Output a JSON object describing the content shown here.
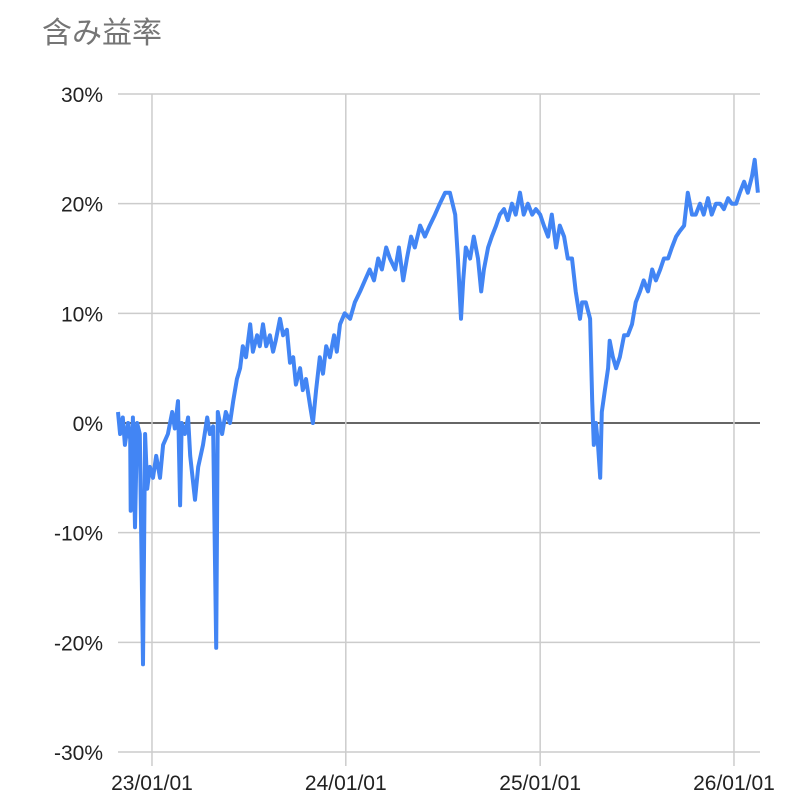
{
  "chart_data": {
    "type": "line",
    "title": "含み益率",
    "xlabel": "",
    "ylabel": "",
    "xlim": [
      "2022-10-29",
      "2026-02-19"
    ],
    "ylim": [
      -30,
      30
    ],
    "grid": true,
    "legend": "none",
    "line_color": "#4285F4",
    "y_ticks": [
      "30%",
      "20%",
      "10%",
      "0%",
      "-10%",
      "-20%",
      "-30%"
    ],
    "y_tick_values": [
      30,
      20,
      10,
      0,
      -10,
      -20,
      -30
    ],
    "x_ticks": [
      "23/01/01",
      "24/01/01",
      "25/01/01",
      "26/01/01"
    ],
    "x_tick_values": [
      "2023-01-01",
      "2024-01-01",
      "2025-01-01",
      "2026-01-01"
    ],
    "series": [
      {
        "x": [
          "2022-10-29",
          "2022-11-02",
          "2022-11-07",
          "2022-11-11",
          "2022-11-17",
          "2022-11-21",
          "2022-11-22",
          "2022-11-26",
          "2022-11-30",
          "2022-12-04",
          "2022-12-09",
          "2022-12-15",
          "2022-12-19",
          "2022-12-23",
          "2022-12-28",
          "2023-01-03",
          "2023-01-09",
          "2023-01-16",
          "2023-01-22",
          "2023-01-31",
          "2023-02-08",
          "2023-02-13",
          "2023-02-19",
          "2023-02-23",
          "2023-02-26",
          "2023-03-04",
          "2023-03-10",
          "2023-03-14",
          "2023-03-23",
          "2023-03-29",
          "2023-04-07",
          "2023-04-15",
          "2023-04-20",
          "2023-04-26",
          "2023-05-02",
          "2023-05-05",
          "2023-05-13",
          "2023-05-20",
          "2023-05-28",
          "2023-06-03",
          "2023-06-10",
          "2023-06-16",
          "2023-06-21",
          "2023-06-27",
          "2023-07-05",
          "2023-07-10",
          "2023-07-18",
          "2023-07-23",
          "2023-07-29",
          "2023-08-04",
          "2023-08-11",
          "2023-08-17",
          "2023-08-22",
          "2023-08-30",
          "2023-09-05",
          "2023-09-12",
          "2023-09-18",
          "2023-09-24",
          "2023-09-29",
          "2023-10-07",
          "2023-10-12",
          "2023-10-18",
          "2023-10-26",
          "2023-10-31",
          "2023-11-06",
          "2023-11-13",
          "2023-11-19",
          "2023-11-25",
          "2023-12-02",
          "2023-12-10",
          "2023-12-15",
          "2023-12-21",
          "2023-12-30",
          "2024-01-09",
          "2024-01-18",
          "2024-01-28",
          "2024-02-06",
          "2024-02-15",
          "2024-02-23",
          "2024-03-02",
          "2024-03-09",
          "2024-03-17",
          "2024-03-24",
          "2024-04-03",
          "2024-04-10",
          "2024-04-18",
          "2024-04-25",
          "2024-05-03",
          "2024-05-10",
          "2024-05-20",
          "2024-05-29",
          "2024-06-07",
          "2024-06-17",
          "2024-06-26",
          "2024-07-06",
          "2024-07-15",
          "2024-07-25",
          "2024-07-30",
          "2024-08-05",
          "2024-08-09",
          "2024-08-14",
          "2024-08-22",
          "2024-08-29",
          "2024-09-06",
          "2024-09-12",
          "2024-09-17",
          "2024-09-25",
          "2024-10-02",
          "2024-10-10",
          "2024-10-17",
          "2024-10-25",
          "2024-11-01",
          "2024-11-09",
          "2024-11-16",
          "2024-11-24",
          "2024-12-01",
          "2024-12-09",
          "2024-12-17",
          "2024-12-24",
          "2025-01-01",
          "2025-01-08",
          "2025-01-16",
          "2025-01-23",
          "2025-01-31",
          "2025-02-07",
          "2025-02-15",
          "2025-02-22",
          "2025-03-02",
          "2025-03-09",
          "2025-03-17",
          "2025-03-21",
          "2025-03-28",
          "2025-04-05",
          "2025-04-09",
          "2025-04-12",
          "2025-04-16",
          "2025-04-20",
          "2025-04-24",
          "2025-04-27",
          "2025-05-03",
          "2025-05-09",
          "2025-05-12",
          "2025-05-18",
          "2025-05-24",
          "2025-05-31",
          "2025-06-08",
          "2025-06-15",
          "2025-06-23",
          "2025-06-30",
          "2025-07-08",
          "2025-07-15",
          "2025-07-23",
          "2025-07-31",
          "2025-08-07",
          "2025-08-15",
          "2025-08-22",
          "2025-08-30",
          "2025-09-06",
          "2025-09-14",
          "2025-09-21",
          "2025-09-29",
          "2025-10-06",
          "2025-10-14",
          "2025-10-21",
          "2025-10-29",
          "2025-11-05",
          "2025-11-13",
          "2025-11-20",
          "2025-11-28",
          "2025-12-06",
          "2025-12-13",
          "2025-12-21",
          "2025-12-28",
          "2026-01-05",
          "2026-01-12",
          "2026-01-20",
          "2026-01-27",
          "2026-02-04",
          "2026-02-09",
          "2026-02-15"
        ],
        "y": [
          1,
          -1,
          0.5,
          -2,
          0,
          -1.5,
          -8,
          0.5,
          -9.5,
          0,
          -1,
          -22,
          -1,
          -6,
          -4,
          -5,
          -3,
          -5,
          -2,
          -1,
          1,
          -0.5,
          2,
          -7.5,
          0,
          -1,
          0.5,
          -3,
          -7,
          -4,
          -2,
          0.5,
          -1,
          -0.3,
          -20.5,
          1,
          -1,
          1,
          0,
          2,
          4,
          5,
          7,
          6,
          9,
          6.5,
          8,
          7,
          9,
          7,
          8,
          6.5,
          7.5,
          9.5,
          8,
          8.5,
          5.5,
          6,
          3.5,
          5,
          3,
          4,
          1.5,
          0,
          3,
          6,
          4.5,
          7,
          6,
          8,
          6.5,
          9,
          10,
          9.5,
          11,
          12,
          13,
          14,
          13,
          15,
          14,
          16,
          15,
          14,
          16,
          13,
          15,
          17,
          16,
          18,
          17,
          18,
          19,
          20,
          21,
          21,
          19,
          15,
          9.5,
          13,
          16,
          15,
          17,
          15,
          12,
          14,
          16,
          17,
          18,
          19,
          19.5,
          18.5,
          20,
          19,
          21,
          19,
          20,
          19,
          19.5,
          19,
          18,
          17,
          19,
          16,
          18,
          17,
          15,
          15,
          12,
          9.5,
          11,
          11,
          9.5,
          2,
          -2,
          0,
          -2,
          -5,
          1,
          3,
          5,
          7.5,
          6,
          5,
          6,
          8,
          8,
          9,
          11,
          12,
          13,
          12,
          14,
          13,
          14,
          15,
          15,
          16,
          17,
          17.5,
          18,
          21,
          19,
          19,
          20,
          19,
          20.5,
          19,
          20,
          20,
          19.5,
          20.5,
          20,
          20,
          21,
          22,
          21,
          22.5,
          24,
          21
        ]
      }
    ]
  }
}
